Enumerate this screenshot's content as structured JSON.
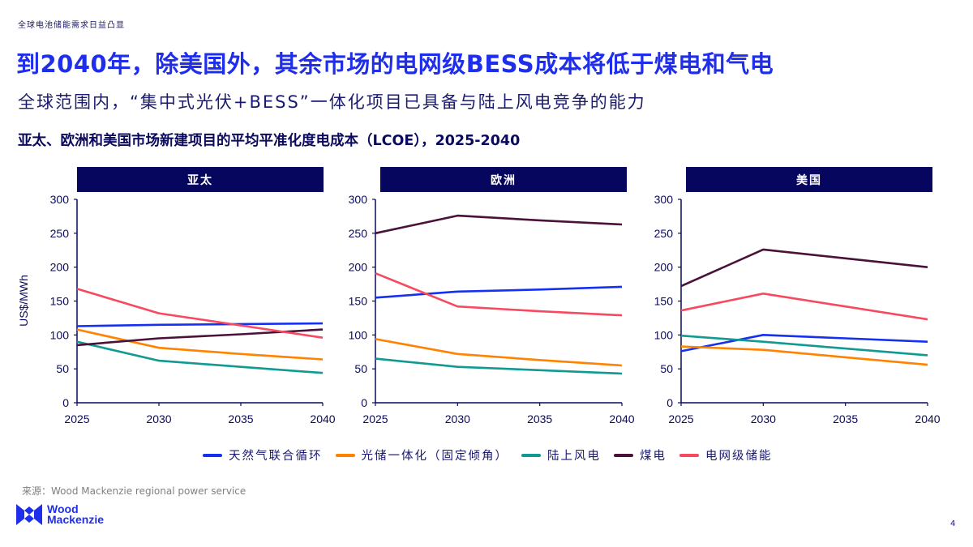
{
  "kicker": "全球电池储能需求日益凸显",
  "headline": "到2040年，除美国外，其余市场的电网级BESS成本将低于煤电和气电",
  "subhead": "全球范围内，“集中式光伏+BESS”一体化项目已具备与陆上风电竞争的能力",
  "source": "来源：Wood Mackenzie regional power service",
  "logo": {
    "line1": "Wood",
    "line2": "Mackenzie",
    "icon": "wood-mackenzie-logo-icon"
  },
  "page_number": "4",
  "colors": {
    "gas": "#1530f0",
    "solar_bess": "#ff8200",
    "wind": "#119a92",
    "coal": "#4a1238",
    "grid_bess": "#f7495f",
    "axis": "#0b0a5e",
    "panel_header": "#07065f",
    "headline": "#1f2eea"
  },
  "chart_data": [
    {
      "type": "line",
      "title": "亚太",
      "suptitle": "亚太、欧洲和美国市场新建项目的平均平准化度电成本（LCOE），2025-2040",
      "xlabel": "",
      "ylabel": "US$/MWh",
      "x": [
        2025,
        2030,
        2035,
        2040
      ],
      "xticks": [
        "2025",
        "2030",
        "2035",
        "2040"
      ],
      "yticks": [
        "0",
        "50",
        "100",
        "150",
        "200",
        "250",
        "300"
      ],
      "ylim": [
        0,
        300
      ],
      "grid": false,
      "legend": "bottom",
      "series": [
        {
          "key": "gas",
          "name": "天然气联合循环",
          "values": [
            113,
            115,
            116,
            117
          ]
        },
        {
          "key": "solar_bess",
          "name": "光储一体化（固定倾角）",
          "values": [
            108,
            81,
            72,
            64
          ]
        },
        {
          "key": "wind",
          "name": "陆上风电",
          "values": [
            90,
            62,
            53,
            44
          ]
        },
        {
          "key": "coal",
          "name": "煤电",
          "values": [
            85,
            95,
            101,
            108
          ]
        },
        {
          "key": "grid_bess",
          "name": "电网级储能",
          "values": [
            168,
            132,
            114,
            96
          ]
        }
      ]
    },
    {
      "type": "line",
      "title": "欧洲",
      "xlabel": "",
      "ylabel": "",
      "x": [
        2025,
        2030,
        2035,
        2040
      ],
      "xticks": [
        "2025",
        "2030",
        "2035",
        "2040"
      ],
      "yticks": [
        "0",
        "50",
        "100",
        "150",
        "200",
        "250",
        "300"
      ],
      "ylim": [
        0,
        300
      ],
      "grid": false,
      "series": [
        {
          "key": "gas",
          "name": "天然气联合循环",
          "values": [
            155,
            164,
            167,
            171
          ]
        },
        {
          "key": "solar_bess",
          "name": "光储一体化（固定倾角）",
          "values": [
            94,
            72,
            63,
            55
          ]
        },
        {
          "key": "wind",
          "name": "陆上风电",
          "values": [
            65,
            53,
            48,
            43
          ]
        },
        {
          "key": "coal",
          "name": "煤电",
          "values": [
            250,
            276,
            269,
            263
          ]
        },
        {
          "key": "grid_bess",
          "name": "电网级储能",
          "values": [
            191,
            142,
            135,
            129
          ]
        }
      ]
    },
    {
      "type": "line",
      "title": "美国",
      "xlabel": "",
      "ylabel": "",
      "x": [
        2025,
        2030,
        2035,
        2040
      ],
      "xticks": [
        "2025",
        "2030",
        "2035",
        "2040"
      ],
      "yticks": [
        "0",
        "50",
        "100",
        "150",
        "200",
        "250",
        "300"
      ],
      "ylim": [
        0,
        300
      ],
      "grid": false,
      "series": [
        {
          "key": "gas",
          "name": "天然气联合循环",
          "values": [
            76,
            100,
            95,
            90
          ]
        },
        {
          "key": "solar_bess",
          "name": "光储一体化（固定倾角）",
          "values": [
            83,
            78,
            67,
            56
          ]
        },
        {
          "key": "wind",
          "name": "陆上风电",
          "values": [
            99,
            90,
            80,
            70
          ]
        },
        {
          "key": "coal",
          "name": "煤电",
          "values": [
            172,
            226,
            213,
            200
          ]
        },
        {
          "key": "grid_bess",
          "name": "电网级储能",
          "values": [
            136,
            161,
            142,
            123
          ]
        }
      ]
    }
  ],
  "legend": [
    {
      "key": "gas",
      "label": "天然气联合循环"
    },
    {
      "key": "solar_bess",
      "label": "光储一体化（固定倾角）"
    },
    {
      "key": "wind",
      "label": "陆上风电"
    },
    {
      "key": "coal",
      "label": "煤电"
    },
    {
      "key": "grid_bess",
      "label": "电网级储能"
    }
  ]
}
